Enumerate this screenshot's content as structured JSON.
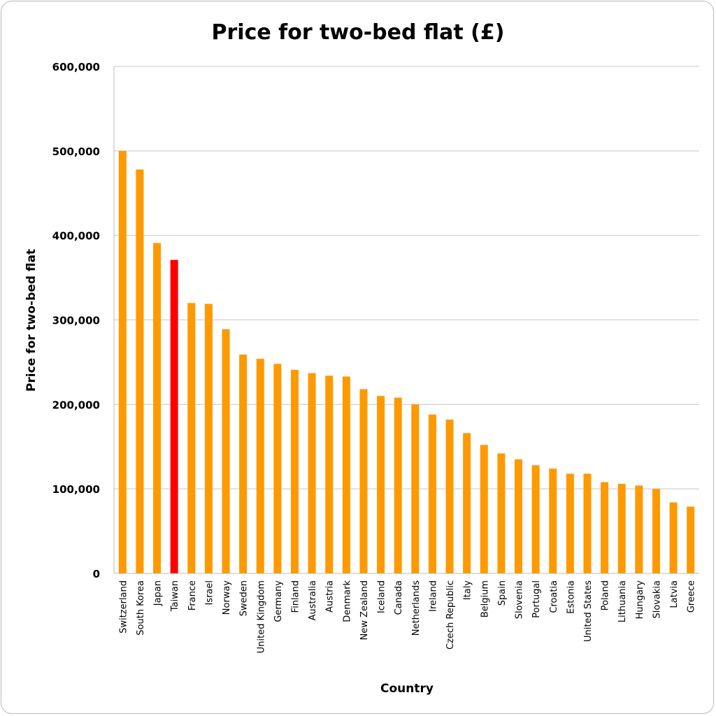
{
  "chart_data": {
    "type": "bar",
    "title": "Price for two-bed flat (£)",
    "xlabel": "Country",
    "ylabel": "Price for two-bed flat",
    "ylim": [
      0,
      600000
    ],
    "yticks": [
      0,
      100000,
      200000,
      300000,
      400000,
      500000,
      600000
    ],
    "ytick_labels": [
      "0",
      "100,000",
      "200,000",
      "300,000",
      "400,000",
      "500,000",
      "600,000"
    ],
    "grid": true,
    "categories": [
      "Switzerland",
      "South Korea",
      "Japan",
      "Taiwan",
      "France",
      "Israel",
      "Norway",
      "Sweden",
      "United Kingdom",
      "Germany",
      "Finland",
      "Australia",
      "Austria",
      "Denmark",
      "New Zealand",
      "Iceland",
      "Canada",
      "Netherlands",
      "Ireland",
      "Czech Republic",
      "Italy",
      "Belgium",
      "Spain",
      "Slovenia",
      "Portugal",
      "Croatia",
      "Estonia",
      "United States",
      "Poland",
      "Lithuania",
      "Hungary",
      "Slovakia",
      "Latvia",
      "Greece"
    ],
    "values": [
      500000,
      478000,
      391000,
      371000,
      320000,
      319000,
      289000,
      259000,
      254000,
      248000,
      241000,
      237000,
      234000,
      233000,
      218000,
      210000,
      208000,
      200000,
      188000,
      182000,
      166000,
      152000,
      142000,
      135000,
      128000,
      124000,
      118000,
      118000,
      108000,
      106000,
      104000,
      100000,
      84000,
      79000
    ],
    "highlight": "Taiwan",
    "colors": {
      "bar": "#FF9900",
      "highlight": "#FF0000",
      "grid": "#C8C8C8"
    }
  }
}
